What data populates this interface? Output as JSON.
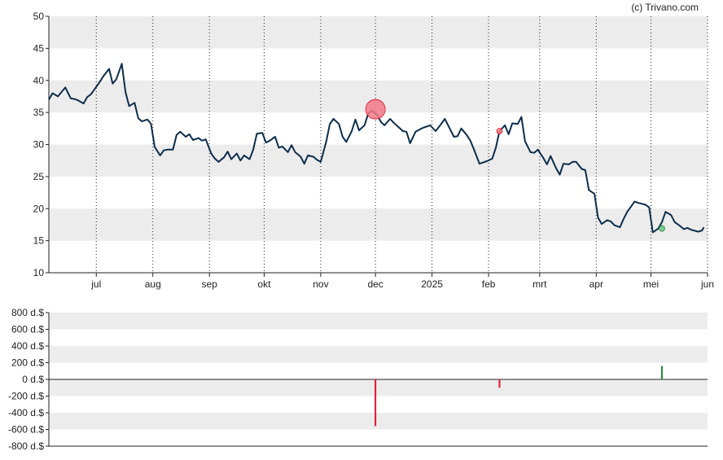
{
  "credit": "(c) Trivano.com",
  "colors": {
    "line": "#0d2d4a",
    "band": "#ececec",
    "grid": "#222222",
    "buy": "#1a8a3a",
    "sell": "#e8112d",
    "marker_sell": "#f27a86",
    "marker_buy": "#6abf7b"
  },
  "chart_data": [
    {
      "type": "line",
      "title": "",
      "xlabel": "",
      "ylabel": "",
      "ylim": [
        10,
        50
      ],
      "yticks": [
        10,
        15,
        20,
        25,
        30,
        35,
        40,
        45,
        50
      ],
      "xlim": [
        "2024-06-05",
        "2025-06-01"
      ],
      "xticks": [
        {
          "label": "jul",
          "date": "2024-07-01"
        },
        {
          "label": "aug",
          "date": "2024-08-01"
        },
        {
          "label": "sep",
          "date": "2024-09-01"
        },
        {
          "label": "okt",
          "date": "2024-10-01"
        },
        {
          "label": "nov",
          "date": "2024-11-01"
        },
        {
          "label": "dec",
          "date": "2024-12-01"
        },
        {
          "label": "2025",
          "date": "2025-01-01"
        },
        {
          "label": "feb",
          "date": "2025-02-01"
        },
        {
          "label": "mrt",
          "date": "2025-03-01"
        },
        {
          "label": "apr",
          "date": "2025-04-01"
        },
        {
          "label": "mei",
          "date": "2025-05-01"
        },
        {
          "label": "jun",
          "date": "2025-06-01"
        }
      ],
      "grid": "horizontal bands, dotted vertical lines at month ticks",
      "series": [
        {
          "x": [
            "2024-06-05",
            "2024-06-07",
            "2024-06-10",
            "2024-06-12",
            "2024-06-14",
            "2024-06-17",
            "2024-06-19",
            "2024-06-21",
            "2024-06-24",
            "2024-06-26",
            "2024-06-28",
            "2024-07-01",
            "2024-07-03",
            "2024-07-05",
            "2024-07-08",
            "2024-07-10",
            "2024-07-12",
            "2024-07-15",
            "2024-07-17",
            "2024-07-19",
            "2024-07-22",
            "2024-07-24",
            "2024-07-26",
            "2024-07-29",
            "2024-07-31",
            "2024-08-02",
            "2024-08-05",
            "2024-08-07",
            "2024-08-09",
            "2024-08-12",
            "2024-08-14",
            "2024-08-16",
            "2024-08-19",
            "2024-08-21",
            "2024-08-23",
            "2024-08-26",
            "2024-08-28",
            "2024-08-30",
            "2024-09-02",
            "2024-09-04",
            "2024-09-06",
            "2024-09-09",
            "2024-09-11",
            "2024-09-13",
            "2024-09-16",
            "2024-09-18",
            "2024-09-20",
            "2024-09-23",
            "2024-09-25",
            "2024-09-27",
            "2024-09-30",
            "2024-10-02",
            "2024-10-04",
            "2024-10-07",
            "2024-10-09",
            "2024-10-11",
            "2024-10-14",
            "2024-10-16",
            "2024-10-18",
            "2024-10-21",
            "2024-10-23",
            "2024-10-25",
            "2024-10-28",
            "2024-10-30",
            "2024-11-01",
            "2024-11-04",
            "2024-11-06",
            "2024-11-08",
            "2024-11-11",
            "2024-11-13",
            "2024-11-15",
            "2024-11-18",
            "2024-11-20",
            "2024-11-22",
            "2024-11-25",
            "2024-11-27",
            "2024-11-29",
            "2024-12-02",
            "2024-12-04",
            "2024-12-06",
            "2024-12-09",
            "2024-12-11",
            "2024-12-13",
            "2024-12-16",
            "2024-12-18",
            "2024-12-20",
            "2024-12-23",
            "2024-12-27",
            "2024-12-31",
            "2025-01-03",
            "2025-01-06",
            "2025-01-08",
            "2025-01-10",
            "2025-01-13",
            "2025-01-15",
            "2025-01-17",
            "2025-01-20",
            "2025-01-22",
            "2025-01-24",
            "2025-01-27",
            "2025-01-29",
            "2025-01-31",
            "2025-02-03",
            "2025-02-05",
            "2025-02-07",
            "2025-02-10",
            "2025-02-12",
            "2025-02-14",
            "2025-02-17",
            "2025-02-19",
            "2025-02-21",
            "2025-02-24",
            "2025-02-26",
            "2025-02-28",
            "2025-03-03",
            "2025-03-05",
            "2025-03-07",
            "2025-03-10",
            "2025-03-12",
            "2025-03-14",
            "2025-03-17",
            "2025-03-19",
            "2025-03-21",
            "2025-03-24",
            "2025-03-26",
            "2025-03-28",
            "2025-03-31",
            "2025-04-02",
            "2025-04-04",
            "2025-04-07",
            "2025-04-09",
            "2025-04-11",
            "2025-04-14",
            "2025-04-16",
            "2025-04-18",
            "2025-04-22",
            "2025-04-24",
            "2025-04-28",
            "2025-04-30",
            "2025-05-02",
            "2025-05-05",
            "2025-05-07",
            "2025-05-09",
            "2025-05-12",
            "2025-05-14",
            "2025-05-16",
            "2025-05-19",
            "2025-05-21",
            "2025-05-23",
            "2025-05-27",
            "2025-05-29",
            "2025-05-30"
          ],
          "y": [
            37.0,
            38.0,
            37.5,
            38.2,
            38.9,
            37.2,
            37.1,
            36.9,
            36.4,
            37.4,
            37.8,
            39.0,
            39.8,
            40.7,
            41.8,
            39.5,
            40.2,
            42.6,
            38.2,
            36.0,
            36.5,
            34.1,
            33.6,
            33.9,
            33.2,
            29.6,
            28.3,
            29.1,
            29.2,
            29.2,
            31.5,
            32.0,
            31.2,
            31.6,
            30.7,
            31.0,
            30.6,
            30.8,
            28.6,
            27.8,
            27.3,
            28.0,
            28.9,
            27.7,
            28.6,
            27.5,
            28.3,
            27.7,
            29.2,
            31.7,
            31.8,
            30.3,
            30.6,
            31.2,
            29.5,
            29.7,
            28.8,
            29.9,
            28.8,
            28.1,
            27.0,
            28.3,
            28.1,
            27.6,
            27.3,
            30.4,
            33.2,
            34.0,
            33.2,
            31.2,
            30.4,
            32.1,
            33.9,
            32.2,
            33.0,
            34.8,
            35.3,
            34.6,
            33.5,
            33.0,
            34.0,
            33.4,
            32.9,
            32.1,
            32.0,
            30.2,
            32.0,
            32.6,
            33.0,
            32.1,
            33.2,
            34.0,
            32.9,
            31.2,
            31.3,
            32.5,
            31.5,
            30.6,
            29.2,
            27.0,
            27.2,
            27.4,
            27.8,
            29.5,
            32.1,
            33.0,
            31.6,
            33.3,
            33.2,
            34.3,
            30.5,
            28.8,
            28.7,
            29.2,
            27.9,
            26.9,
            28.2,
            26.3,
            25.3,
            27.0,
            26.9,
            27.3,
            27.3,
            26.2,
            26.0,
            22.9,
            22.3,
            18.6,
            17.6,
            18.2,
            18.0,
            17.4,
            17.1,
            18.4,
            19.5,
            21.1,
            20.9,
            20.6,
            20.2,
            16.3,
            16.9,
            17.9,
            19.5,
            19.0,
            17.9,
            17.5,
            16.8,
            17.0,
            16.7,
            16.4,
            16.6,
            17.1
          ]
        }
      ],
      "markers": [
        {
          "date": "2024-12-01",
          "value": 35.5,
          "kind": "sell",
          "size": "large"
        },
        {
          "date": "2025-02-07",
          "value": 32.1,
          "kind": "sell",
          "size": "small"
        },
        {
          "date": "2025-05-07",
          "value": 16.9,
          "kind": "buy",
          "size": "small"
        }
      ]
    },
    {
      "type": "bar",
      "title": "",
      "xlabel": "",
      "ylabel": "",
      "unit": "d.$",
      "ylim": [
        -800,
        800
      ],
      "yticks": [
        800,
        600,
        400,
        200,
        0,
        -200,
        -400,
        -600,
        -800
      ],
      "ytick_labels": [
        "800 d.$",
        "600 d.$",
        "400 d.$",
        "200 d.$",
        "0 d.$",
        "-200 d.$",
        "-400 d.$",
        "-600 d.$",
        "-800 d.$"
      ],
      "grid": "horizontal bands",
      "bars": [
        {
          "date": "2024-12-01",
          "value": -560,
          "kind": "sell"
        },
        {
          "date": "2025-02-07",
          "value": -100,
          "kind": "sell"
        },
        {
          "date": "2025-05-07",
          "value": 160,
          "kind": "buy"
        }
      ]
    }
  ]
}
